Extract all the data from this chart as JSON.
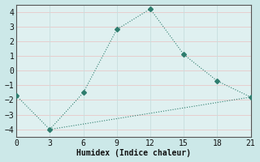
{
  "xlabel": "Humidex (Indice chaleur)",
  "bg_color": "#cce8e8",
  "plot_bg_color": "#dff0f0",
  "line1_x": [
    0,
    3,
    6,
    9,
    12,
    15,
    18,
    21
  ],
  "line1_y": [
    -1.7,
    -4.0,
    -1.5,
    2.8,
    4.2,
    1.1,
    -0.7,
    -1.8
  ],
  "line2_x": [
    3,
    21
  ],
  "line2_y": [
    -4.0,
    -1.8
  ],
  "line_color": "#2e7d6e",
  "xlim": [
    0,
    21
  ],
  "ylim": [
    -4.5,
    4.5
  ],
  "xticks": [
    0,
    3,
    6,
    9,
    12,
    15,
    18,
    21
  ],
  "yticks": [
    -4,
    -3,
    -2,
    -1,
    0,
    1,
    2,
    3,
    4
  ],
  "grid_color_h": "#e8c8c8",
  "grid_color_v": "#c8dede",
  "font_family": "monospace",
  "font_size_tick": 7,
  "font_size_xlabel": 7,
  "marker_style": "D",
  "marker_size": 3
}
